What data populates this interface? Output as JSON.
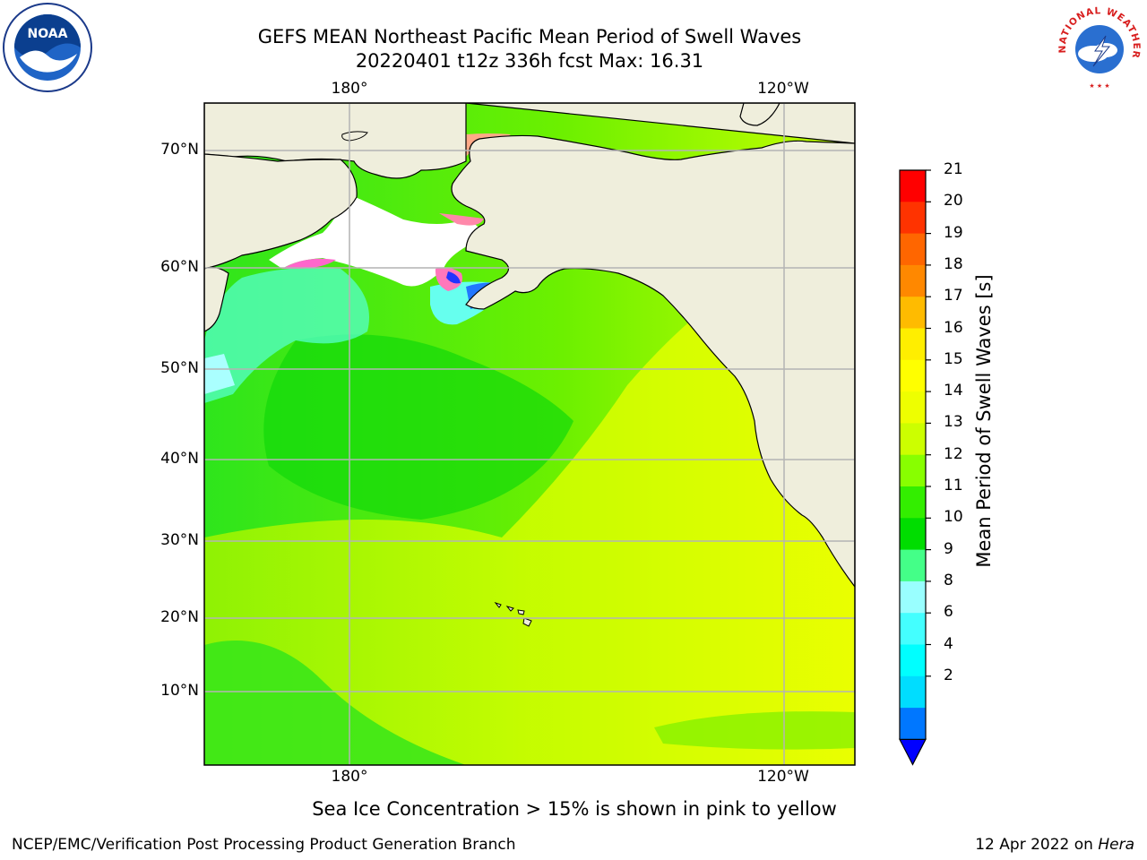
{
  "title": {
    "line1": "GEFS MEAN Northeast Pacific Mean Period of Swell Waves",
    "line2": "20220401 t12z 336h fcst   Max: 16.31"
  },
  "axes": {
    "lon_top": [
      "180°",
      "120°W"
    ],
    "lon_bottom": [
      "180°",
      "120°W"
    ],
    "lat": [
      "70°N",
      "60°N",
      "50°N",
      "40°N",
      "30°N",
      "20°N",
      "10°N"
    ]
  },
  "colorbar": {
    "title": "Mean Period of Swell Waves [s]",
    "ticks": [
      "21",
      "20",
      "19",
      "18",
      "17",
      "16",
      "15",
      "14",
      "13",
      "12",
      "11",
      "10",
      "9",
      "8",
      "6",
      "4",
      "2"
    ],
    "colors": [
      "#ff0000",
      "#ff3300",
      "#ff6600",
      "#ff8800",
      "#ffbb00",
      "#ffee00",
      "#ffff00",
      "#eeff00",
      "#ccff00",
      "#88ff00",
      "#33ee00",
      "#00dd00",
      "#44ff88",
      "#99ffff",
      "#44ffff",
      "#00ffff",
      "#00ddff",
      "#0077ff"
    ],
    "extend_color": "#0000ff"
  },
  "note": "Sea Ice Concentration > 15% is shown in pink to yellow",
  "footer": {
    "left": "NCEP/EMC/Verification Post Processing Product Generation Branch",
    "right_prefix": "12 Apr 2022 on ",
    "right_machine": "Hera"
  },
  "logos": {
    "left": "NOAA",
    "right": "NATIONAL WEATHER SERVICE"
  },
  "map_colors": {
    "land": "#efeedc",
    "ice": "#ffffff",
    "grid": "#b4b4b4",
    "coast": "#000000"
  }
}
